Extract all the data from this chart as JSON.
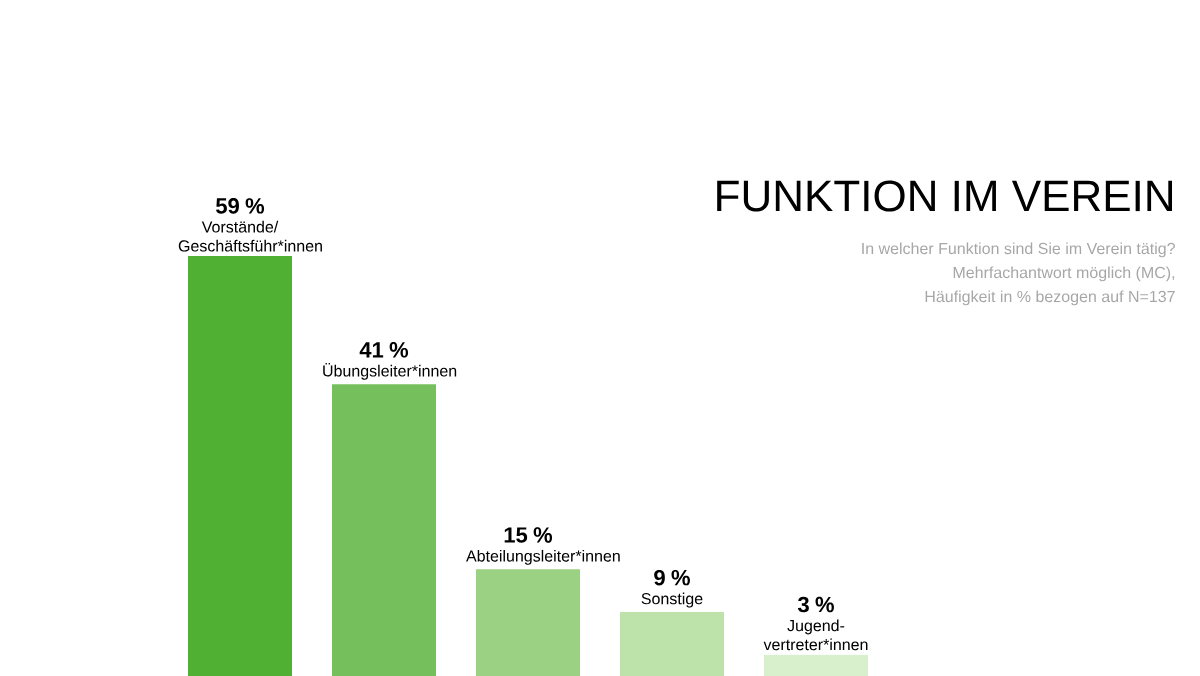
{
  "chart_data": {
    "type": "bar",
    "title": "FUNKTION IM VEREIN",
    "subtitle": "In welcher Funktion sind Sie im Verein tätig?",
    "annotations": [
      "Mehrfachantwort möglich (MC),",
      "Häufigkeit in % bezogen auf N=137"
    ],
    "categories": [
      "Vorstände/ Geschäftsführ*innen",
      "Übungsleiter*innen",
      "Abteilungsleiter*innen",
      "Sonstige",
      "Jugend-vertreter*innen"
    ],
    "values": [
      59,
      41,
      15,
      9,
      3
    ],
    "value_labels": [
      "59 %",
      "41 %",
      "15 %",
      "9 %",
      "3 %"
    ],
    "colors": [
      "#50b034",
      "#75c05c",
      "#9bd182",
      "#bde3aa",
      "#d9f0cd"
    ]
  }
}
